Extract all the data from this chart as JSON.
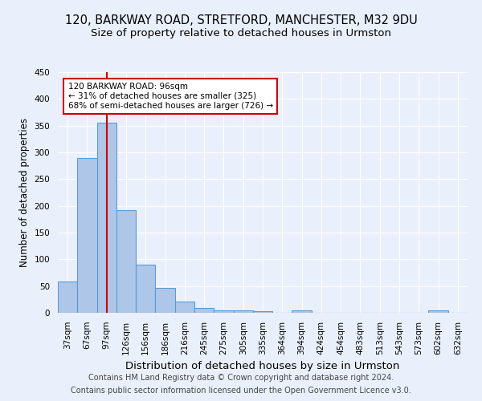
{
  "title1": "120, BARKWAY ROAD, STRETFORD, MANCHESTER, M32 9DU",
  "title2": "Size of property relative to detached houses in Urmston",
  "xlabel": "Distribution of detached houses by size in Urmston",
  "ylabel": "Number of detached properties",
  "categories": [
    "37sqm",
    "67sqm",
    "97sqm",
    "126sqm",
    "156sqm",
    "186sqm",
    "216sqm",
    "245sqm",
    "275sqm",
    "305sqm",
    "335sqm",
    "364sqm",
    "394sqm",
    "424sqm",
    "454sqm",
    "483sqm",
    "513sqm",
    "543sqm",
    "573sqm",
    "602sqm",
    "632sqm"
  ],
  "values": [
    58,
    290,
    355,
    192,
    90,
    47,
    21,
    9,
    4,
    5,
    3,
    0,
    5,
    0,
    0,
    0,
    0,
    0,
    0,
    4,
    0
  ],
  "bar_color": "#aec6e8",
  "bar_edge_color": "#5b9bd5",
  "highlight_index": 2,
  "highlight_line_color": "#cc0000",
  "annotation_text": "120 BARKWAY ROAD: 96sqm\n← 31% of detached houses are smaller (325)\n68% of semi-detached houses are larger (726) →",
  "annotation_box_color": "#ffffff",
  "annotation_box_edge": "#cc0000",
  "footnote1": "Contains HM Land Registry data © Crown copyright and database right 2024.",
  "footnote2": "Contains public sector information licensed under the Open Government Licence v3.0.",
  "background_color": "#eaf0fb",
  "axes_background": "#eaf0fb",
  "grid_color": "#ffffff",
  "ylim": [
    0,
    450
  ],
  "title1_fontsize": 10.5,
  "title2_fontsize": 9.5,
  "xlabel_fontsize": 9.5,
  "ylabel_fontsize": 8.5,
  "tick_fontsize": 7.5,
  "footnote_fontsize": 7.0
}
